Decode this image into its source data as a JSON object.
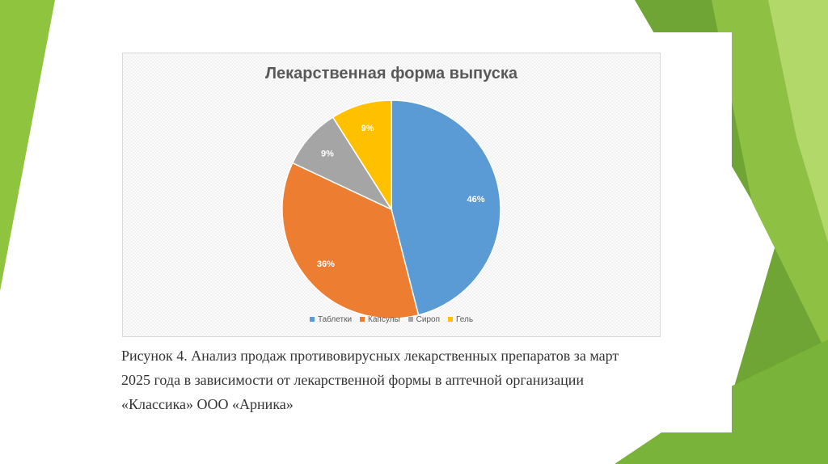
{
  "colors": {
    "accent_green_dark": "#5f9a2a",
    "accent_green": "#8bbd3b",
    "accent_green_light": "#a6cf52"
  },
  "chart_data": {
    "type": "pie",
    "title": "Лекарственная форма выпуска",
    "categories": [
      "Таблетки",
      "Капсулы",
      "Сироп",
      "Гель"
    ],
    "values": [
      46,
      36,
      9,
      9
    ],
    "data_labels": [
      "46%",
      "36%",
      "9%",
      "9%"
    ],
    "colors": [
      "#5b9bd5",
      "#ed7d31",
      "#a5a5a5",
      "#ffc000"
    ],
    "legend_position": "bottom"
  },
  "caption": {
    "lines": [
      "Рисунок 4. Анализ продаж противовирусных лекарственных препаратов за март",
      "2025 года в зависимости от лекарственной формы в аптечной организации",
      "«Классика» ООО «Арника»"
    ]
  }
}
